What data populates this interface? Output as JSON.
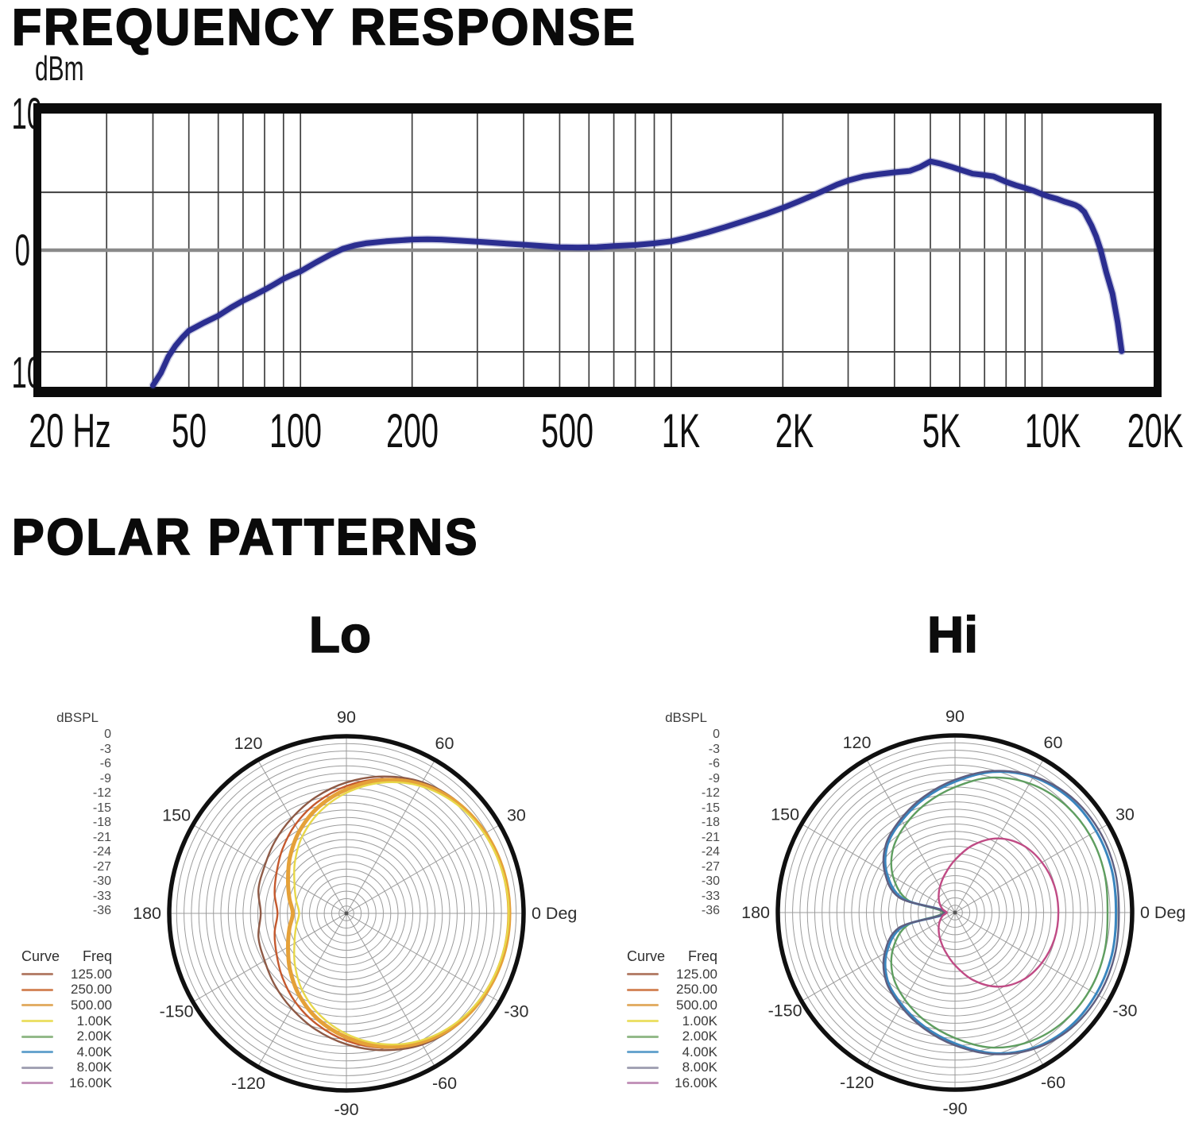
{
  "page": {
    "background": "#ffffff",
    "fr_title": "FREQUENCY RESPONSE",
    "polar_title": "POLAR PATTERNS"
  },
  "chart_data": [
    {
      "id": "frequency-response",
      "type": "line",
      "title": "FREQUENCY RESPONSE",
      "ylabel": "dBm",
      "x_unit": "Hz",
      "x_scale": "log",
      "xlim": [
        20,
        20000
      ],
      "ylim": [
        -10,
        10
      ],
      "grid": true,
      "frame_color": "#0b0b0b",
      "gridline_color": "#3f3f3f",
      "zero_line_color": "#8a8a8a",
      "y_ticks": [
        {
          "label": "10",
          "db": 10
        },
        {
          "label": "0",
          "db": 0
        },
        {
          "label": "10",
          "db": -10
        }
      ],
      "x_ticks": [
        {
          "label": "20 Hz",
          "hz": 20,
          "dx": 36
        },
        {
          "label": "50",
          "hz": 50,
          "dx": 0
        },
        {
          "label": "100",
          "hz": 100,
          "dx": -6
        },
        {
          "label": "200",
          "hz": 200,
          "dx": 0
        },
        {
          "label": "500",
          "hz": 500,
          "dx": 10
        },
        {
          "label": "1K",
          "hz": 1000,
          "dx": 12
        },
        {
          "label": "2K",
          "hz": 2000,
          "dx": 15
        },
        {
          "label": "5K",
          "hz": 5000,
          "dx": 14
        },
        {
          "label": "10K",
          "hz": 10000,
          "dx": 13
        },
        {
          "label": "20K",
          "hz": 20000,
          "dx": 2
        }
      ],
      "h_gridlines_db": [
        4.24,
        -7.44
      ],
      "v_gridlines_hz": [
        30,
        40,
        50,
        60,
        70,
        80,
        90,
        100,
        200,
        300,
        400,
        500,
        600,
        700,
        800,
        900,
        1000,
        2000,
        3000,
        4000,
        5000,
        6000,
        7000,
        8000,
        9000,
        10000
      ],
      "series": [
        {
          "name": "response",
          "color": "#2b2e90",
          "points_hz_db": [
            [
              40,
              -9.9
            ],
            [
              42,
              -9.0
            ],
            [
              44,
              -7.8
            ],
            [
              46,
              -7.0
            ],
            [
              48,
              -6.4
            ],
            [
              50,
              -5.9
            ],
            [
              55,
              -5.3
            ],
            [
              60,
              -4.8
            ],
            [
              65,
              -4.2
            ],
            [
              70,
              -3.7
            ],
            [
              75,
              -3.3
            ],
            [
              80,
              -2.9
            ],
            [
              85,
              -2.5
            ],
            [
              90,
              -2.1
            ],
            [
              95,
              -1.8
            ],
            [
              100,
              -1.55
            ],
            [
              110,
              -0.9
            ],
            [
              120,
              -0.35
            ],
            [
              130,
              0.1
            ],
            [
              140,
              0.35
            ],
            [
              150,
              0.5
            ],
            [
              170,
              0.65
            ],
            [
              200,
              0.78
            ],
            [
              220,
              0.8
            ],
            [
              240,
              0.78
            ],
            [
              270,
              0.7
            ],
            [
              300,
              0.62
            ],
            [
              350,
              0.5
            ],
            [
              400,
              0.4
            ],
            [
              450,
              0.3
            ],
            [
              500,
              0.22
            ],
            [
              560,
              0.2
            ],
            [
              630,
              0.22
            ],
            [
              700,
              0.3
            ],
            [
              800,
              0.38
            ],
            [
              900,
              0.5
            ],
            [
              1000,
              0.65
            ],
            [
              1100,
              0.9
            ],
            [
              1250,
              1.3
            ],
            [
              1400,
              1.7
            ],
            [
              1600,
              2.2
            ],
            [
              1800,
              2.65
            ],
            [
              2000,
              3.1
            ],
            [
              2200,
              3.55
            ],
            [
              2500,
              4.2
            ],
            [
              2800,
              4.8
            ],
            [
              3000,
              5.1
            ],
            [
              3300,
              5.4
            ],
            [
              3600,
              5.55
            ],
            [
              4000,
              5.7
            ],
            [
              4400,
              5.8
            ],
            [
              4700,
              6.1
            ],
            [
              5000,
              6.5
            ],
            [
              5300,
              6.35
            ],
            [
              5700,
              6.1
            ],
            [
              6000,
              5.9
            ],
            [
              6500,
              5.6
            ],
            [
              7000,
              5.5
            ],
            [
              7400,
              5.4
            ],
            [
              8000,
              5.0
            ],
            [
              8500,
              4.75
            ],
            [
              9000,
              4.55
            ],
            [
              9500,
              4.35
            ],
            [
              10000,
              4.1
            ],
            [
              10500,
              3.9
            ],
            [
              11000,
              3.75
            ],
            [
              11500,
              3.55
            ],
            [
              12000,
              3.4
            ],
            [
              12300,
              3.3
            ],
            [
              12600,
              3.15
            ],
            [
              13000,
              2.8
            ],
            [
              13600,
              1.8
            ],
            [
              14000,
              1.0
            ],
            [
              14400,
              0.0
            ],
            [
              14900,
              -1.6
            ],
            [
              15500,
              -3.2
            ],
            [
              16000,
              -5.3
            ],
            [
              16400,
              -7.4
            ]
          ]
        }
      ]
    },
    {
      "id": "polar-lo",
      "type": "polar",
      "title": "Lo",
      "radial_label": "dBSPL",
      "radial_ticks_db": [
        0,
        -3,
        -6,
        -9,
        -12,
        -15,
        -18,
        -21,
        -24,
        -27,
        -30,
        -33,
        -36
      ],
      "r_range_db": [
        0,
        -36
      ],
      "rings_db_step": 1.5,
      "spoke_step_deg": 30,
      "angle_ticks": [
        {
          "deg": 90,
          "label": "90"
        },
        {
          "deg": 120,
          "label": "120"
        },
        {
          "deg": 60,
          "label": "60"
        },
        {
          "deg": 150,
          "label": "150"
        },
        {
          "deg": 30,
          "label": "30"
        },
        {
          "deg": 180,
          "label": "180"
        },
        {
          "deg": 0,
          "label": "0 Deg"
        },
        {
          "deg": -150,
          "label": "-150"
        },
        {
          "deg": -30,
          "label": "-30"
        },
        {
          "deg": -120,
          "label": "-120"
        },
        {
          "deg": -60,
          "label": "-60"
        },
        {
          "deg": -90,
          "label": "-90"
        }
      ],
      "legend": {
        "col_curve": "Curve",
        "col_freq": "Freq",
        "entries": [
          {
            "freq": "125.00",
            "swatch": "#b5806b"
          },
          {
            "freq": "250.00",
            "swatch": "#d4885c"
          },
          {
            "freq": "500.00",
            "swatch": "#e2ae66"
          },
          {
            "freq": "1.00K",
            "swatch": "#ece068"
          },
          {
            "freq": "2.00K",
            "swatch": "#93ba89"
          },
          {
            "freq": "4.00K",
            "swatch": "#68a5ce"
          },
          {
            "freq": "8.00K",
            "swatch": "#a2a2b4"
          },
          {
            "freq": "16.00K",
            "swatch": "#c394ba"
          }
        ]
      },
      "series": [
        {
          "freq": "125.00",
          "color": "#8e5a46",
          "width": 2.4,
          "db_by_angle_step15": [
            -3.0,
            -3.1,
            -3.4,
            -4.0,
            -5.2,
            -7.2,
            -9.4,
            -11.6,
            -13.7,
            -15.4,
            -16.8,
            -17.5,
            -18.6
          ]
        },
        {
          "freq": "250.00",
          "color": "#c4592e",
          "width": 2.4,
          "db_by_angle_step15": [
            -3.0,
            -3.1,
            -3.5,
            -4.2,
            -5.5,
            -7.7,
            -10.1,
            -12.7,
            -15.2,
            -17.6,
            -19.6,
            -20.9,
            -22.0
          ]
        },
        {
          "freq": "500.00",
          "color": "#e5a139",
          "width": 5,
          "db_by_angle_step15": [
            -2.9,
            -3.0,
            -3.4,
            -4.2,
            -5.7,
            -8.0,
            -10.8,
            -13.7,
            -16.8,
            -19.8,
            -22.3,
            -24.0,
            -25.1
          ]
        },
        {
          "freq": "1.00K",
          "color": "#e8d84a",
          "width": 2.4,
          "db_by_angle_step15": [
            -3.0,
            -3.2,
            -3.6,
            -4.5,
            -6.1,
            -8.5,
            -11.5,
            -14.7,
            -18.0,
            -21.2,
            -23.8,
            -25.4,
            -26.4
          ]
        }
      ]
    },
    {
      "id": "polar-hi",
      "type": "polar",
      "title": "Hi",
      "radial_label": "dBSPL",
      "radial_ticks_db": [
        0,
        -3,
        -6,
        -9,
        -12,
        -15,
        -18,
        -21,
        -24,
        -27,
        -30,
        -33,
        -36
      ],
      "r_range_db": [
        0,
        -36
      ],
      "rings_db_step": 1.5,
      "spoke_step_deg": 30,
      "angle_ticks": [
        {
          "deg": 90,
          "label": "90"
        },
        {
          "deg": 120,
          "label": "120"
        },
        {
          "deg": 60,
          "label": "60"
        },
        {
          "deg": 150,
          "label": "150"
        },
        {
          "deg": 30,
          "label": "30"
        },
        {
          "deg": 180,
          "label": "180"
        },
        {
          "deg": 0,
          "label": "0 Deg"
        },
        {
          "deg": -150,
          "label": "-150"
        },
        {
          "deg": -30,
          "label": "-30"
        },
        {
          "deg": -120,
          "label": "-120"
        },
        {
          "deg": -60,
          "label": "-60"
        },
        {
          "deg": -90,
          "label": "-90"
        }
      ],
      "legend": {
        "col_curve": "Curve",
        "col_freq": "Freq",
        "entries": [
          {
            "freq": "125.00",
            "swatch": "#b5806b"
          },
          {
            "freq": "250.00",
            "swatch": "#d4885c"
          },
          {
            "freq": "500.00",
            "swatch": "#e2ae66"
          },
          {
            "freq": "1.00K",
            "swatch": "#ece068"
          },
          {
            "freq": "2.00K",
            "swatch": "#93ba89"
          },
          {
            "freq": "4.00K",
            "swatch": "#68a5ce"
          },
          {
            "freq": "8.00K",
            "swatch": "#a2a2b4"
          },
          {
            "freq": "16.00K",
            "swatch": "#c394ba"
          }
        ]
      },
      "series": [
        {
          "freq": "2.00K",
          "color": "#5f9e60",
          "width": 2.4,
          "db_by_angle_step15": [
            -5.0,
            -4.6,
            -4.4,
            -4.7,
            -5.7,
            -7.6,
            -10.5,
            -13.1,
            -15.6,
            -18.1,
            -21.5,
            -26.0,
            -33.5
          ]
        },
        {
          "freq": "4.00K",
          "color": "#3a86bf",
          "width": 3,
          "db_by_angle_step15": [
            -3.3,
            -3.0,
            -2.9,
            -3.1,
            -4.2,
            -6.4,
            -9.4,
            -12.0,
            -14.4,
            -16.6,
            -20.0,
            -25.0,
            -34.0
          ]
        },
        {
          "freq": "8.00K",
          "color": "#5f5f80",
          "width": 2.4,
          "db_by_angle_step15": [
            -2.7,
            -2.4,
            -2.3,
            -2.7,
            -4.0,
            -6.2,
            -9.0,
            -11.6,
            -14.0,
            -16.2,
            -19.5,
            -24.3,
            -33.8
          ]
        },
        {
          "freq": "16.00K",
          "color": "#c04b85",
          "width": 2.4,
          "db_by_angle_step15": [
            -15.0,
            -15.1,
            -15.6,
            -16.6,
            -18.6,
            -21.8,
            -25.3,
            -28.0,
            -29.9,
            -31.3,
            -32.4,
            -33.4,
            -34.3
          ]
        }
      ]
    }
  ]
}
